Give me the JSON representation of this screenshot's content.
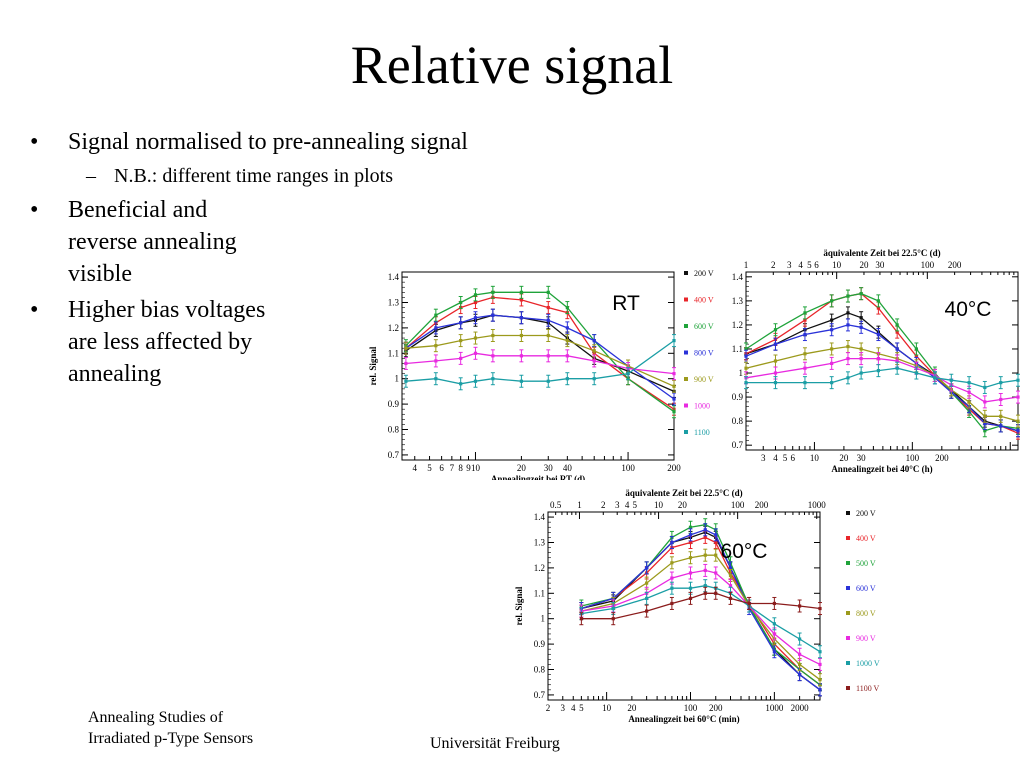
{
  "slide": {
    "title": "Relative signal",
    "bullets": [
      {
        "text": "Signal normalised to  pre-annealing signal",
        "sub": [
          "N.B.: different time ranges in plots"
        ]
      },
      {
        "text": "Beneficial and reverse annealing visible"
      },
      {
        "text": "Higher bias voltages are less affected by annealing"
      }
    ],
    "footer_left": "Annealing Studies of Irradiated p-Type Sensors",
    "footer_center": "Universität Freiburg",
    "bullet_symbol": "•",
    "dash_symbol": "–"
  },
  "chart_data": [
    {
      "type": "line",
      "label": "RT",
      "xscale": "log",
      "xlabel": "Annealingzeit bei RT (d)",
      "ylabel": "rel. Signal",
      "xlim": [
        3.3,
        200
      ],
      "ylim": [
        0.68,
        1.42
      ],
      "xtick_labels": [
        {
          "v": 4,
          "t": "4"
        },
        {
          "v": 5,
          "t": "5"
        },
        {
          "v": 6,
          "t": "6"
        },
        {
          "v": 7,
          "t": "7"
        },
        {
          "v": 8,
          "t": "8"
        },
        {
          "v": 9,
          "t": "9"
        },
        {
          "v": 10,
          "t": "10"
        },
        {
          "v": 20,
          "t": "20"
        },
        {
          "v": 30,
          "t": "30"
        },
        {
          "v": 40,
          "t": "40"
        },
        {
          "v": 100,
          "t": "100"
        },
        {
          "v": 200,
          "t": "200"
        }
      ],
      "yticks": [
        0.7,
        0.8,
        0.9,
        1.0,
        1.1,
        1.2,
        1.3,
        1.4
      ],
      "ytick_labels": [
        "0.7",
        "0.8",
        "0.9",
        "1",
        "1.1",
        "1.2",
        "1.3",
        "1.4"
      ],
      "legend": [
        "200 V",
        "400 V",
        "600 V",
        "800 V",
        "900 V",
        "1000",
        "1100"
      ],
      "x": [
        3.5,
        5.5,
        8,
        10,
        13,
        20,
        30,
        40,
        60,
        100,
        200
      ],
      "series": [
        {
          "name": "200 V",
          "color": "#111111",
          "values": [
            1.11,
            1.19,
            1.22,
            1.23,
            1.25,
            1.24,
            1.22,
            1.16,
            1.08,
            1.03,
            0.95
          ]
        },
        {
          "name": "400 V",
          "color": "#e8252a",
          "values": [
            1.12,
            1.22,
            1.28,
            1.3,
            1.32,
            1.31,
            1.28,
            1.26,
            1.1,
            1.0,
            0.88
          ]
        },
        {
          "name": "600 V",
          "color": "#1fa33a",
          "values": [
            1.13,
            1.25,
            1.3,
            1.33,
            1.34,
            1.34,
            1.34,
            1.28,
            1.15,
            1.0,
            0.87
          ]
        },
        {
          "name": "800 V",
          "color": "#2a32d8",
          "values": [
            1.12,
            1.2,
            1.22,
            1.24,
            1.25,
            1.24,
            1.23,
            1.2,
            1.15,
            1.05,
            0.92
          ]
        },
        {
          "name": "900 V",
          "color": "#9c9a1c",
          "values": [
            1.12,
            1.13,
            1.15,
            1.16,
            1.17,
            1.17,
            1.17,
            1.15,
            1.11,
            1.05,
            0.97
          ]
        },
        {
          "name": "1000",
          "color": "#e82ae0",
          "values": [
            1.06,
            1.07,
            1.08,
            1.1,
            1.09,
            1.09,
            1.09,
            1.09,
            1.07,
            1.04,
            1.02
          ]
        },
        {
          "name": "1100",
          "color": "#1b9ea5",
          "values": [
            0.99,
            1.0,
            0.98,
            0.99,
            1.0,
            0.99,
            0.99,
            1.0,
            1.0,
            1.02,
            1.15
          ]
        }
      ]
    },
    {
      "type": "line",
      "label": "40°C",
      "xscale": "log",
      "xlabel": "Annealingzeit bei 40°C (h)",
      "ylabel": "",
      "top_axis_label": "äquivalente Zeit bei 22.5°C (d)",
      "top_xlim": [
        1,
        1000
      ],
      "top_tick_labels": [
        {
          "v": 1,
          "t": "1"
        },
        {
          "v": 2,
          "t": "2"
        },
        {
          "v": 3,
          "t": "3"
        },
        {
          "v": 4,
          "t": "4"
        },
        {
          "v": 5,
          "t": "5"
        },
        {
          "v": 6,
          "t": "6"
        },
        {
          "v": 10,
          "t": "10"
        },
        {
          "v": 20,
          "t": "20"
        },
        {
          "v": 30,
          "t": "30"
        },
        {
          "v": 100,
          "t": "100"
        },
        {
          "v": 200,
          "t": "200"
        }
      ],
      "xlim": [
        2,
        1200
      ],
      "ylim": [
        0.68,
        1.42
      ],
      "xtick_labels": [
        {
          "v": 3,
          "t": "3"
        },
        {
          "v": 4,
          "t": "4"
        },
        {
          "v": 5,
          "t": "5"
        },
        {
          "v": 6,
          "t": "6"
        },
        {
          "v": 10,
          "t": "10"
        },
        {
          "v": 20,
          "t": "20"
        },
        {
          "v": 30,
          "t": "30"
        },
        {
          "v": 100,
          "t": "100"
        },
        {
          "v": 200,
          "t": "200"
        }
      ],
      "yticks": [
        0.7,
        0.8,
        0.9,
        1.0,
        1.1,
        1.2,
        1.3,
        1.4
      ],
      "ytick_labels": [
        "0.7",
        "0.8",
        "0.9",
        "1",
        "1.1",
        "1.2",
        "1.3",
        "1.4"
      ],
      "x": [
        2,
        4,
        8,
        15,
        22,
        30,
        45,
        70,
        110,
        170,
        250,
        380,
        550,
        800,
        1200
      ],
      "series": [
        {
          "name": "200 V",
          "color": "#111111",
          "values": [
            1.08,
            1.12,
            1.18,
            1.22,
            1.25,
            1.23,
            1.17,
            1.1,
            1.04,
            0.99,
            0.93,
            0.86,
            0.8,
            0.78,
            0.76
          ]
        },
        {
          "name": "400 V",
          "color": "#e8252a",
          "values": [
            1.08,
            1.14,
            1.22,
            1.3,
            1.32,
            1.33,
            1.27,
            1.17,
            1.07,
            0.99,
            0.92,
            0.85,
            0.79,
            0.78,
            0.75
          ]
        },
        {
          "name": "600 V",
          "color": "#1fa33a",
          "values": [
            1.1,
            1.18,
            1.25,
            1.3,
            1.32,
            1.33,
            1.3,
            1.2,
            1.1,
            1.0,
            0.92,
            0.84,
            0.76,
            0.78,
            0.77
          ]
        },
        {
          "name": "800 V",
          "color": "#2a32d8",
          "values": [
            1.07,
            1.12,
            1.16,
            1.18,
            1.2,
            1.19,
            1.16,
            1.1,
            1.04,
            0.98,
            0.92,
            0.86,
            0.79,
            0.78,
            0.76
          ]
        },
        {
          "name": "900 V",
          "color": "#9c9a1c",
          "values": [
            1.02,
            1.05,
            1.08,
            1.1,
            1.11,
            1.1,
            1.08,
            1.06,
            1.03,
            0.99,
            0.93,
            0.88,
            0.82,
            0.82,
            0.8
          ]
        },
        {
          "name": "1000",
          "color": "#e82ae0",
          "values": [
            0.98,
            1.0,
            1.02,
            1.04,
            1.06,
            1.06,
            1.06,
            1.05,
            1.02,
            0.99,
            0.95,
            0.92,
            0.88,
            0.89,
            0.9
          ]
        },
        {
          "name": "1100",
          "color": "#1b9ea5",
          "values": [
            0.96,
            0.96,
            0.96,
            0.96,
            0.98,
            1.0,
            1.01,
            1.02,
            1.0,
            0.98,
            0.97,
            0.96,
            0.94,
            0.96,
            0.97
          ]
        }
      ]
    },
    {
      "type": "line",
      "label": "60°C",
      "xscale": "log",
      "xlabel": "Annealingzeit bei 60°C (min)",
      "ylabel": "rel. Signal",
      "top_axis_label": "äquivalente Zeit bei 22.5°C (d)",
      "top_xlim": [
        0.4,
        1100
      ],
      "top_tick_labels": [
        {
          "v": 0.5,
          "t": "0.5"
        },
        {
          "v": 1,
          "t": "1"
        },
        {
          "v": 2,
          "t": "2"
        },
        {
          "v": 3,
          "t": "3"
        },
        {
          "v": 4,
          "t": "4"
        },
        {
          "v": 5,
          "t": "5"
        },
        {
          "v": 10,
          "t": "10"
        },
        {
          "v": 20,
          "t": "20"
        },
        {
          "v": 100,
          "t": "100"
        },
        {
          "v": 200,
          "t": "200"
        },
        {
          "v": 1000,
          "t": "1000"
        }
      ],
      "xlim": [
        2,
        3500
      ],
      "ylim": [
        0.68,
        1.42
      ],
      "xtick_labels": [
        {
          "v": 2,
          "t": "2"
        },
        {
          "v": 3,
          "t": "3"
        },
        {
          "v": 4,
          "t": "4"
        },
        {
          "v": 5,
          "t": "5"
        },
        {
          "v": 10,
          "t": "10"
        },
        {
          "v": 20,
          "t": "20"
        },
        {
          "v": 100,
          "t": "100"
        },
        {
          "v": 200,
          "t": "200"
        },
        {
          "v": 1000,
          "t": "1000"
        },
        {
          "v": 2000,
          "t": "2000"
        }
      ],
      "yticks": [
        0.7,
        0.8,
        0.9,
        1.0,
        1.1,
        1.2,
        1.3,
        1.4
      ],
      "ytick_labels": [
        "0.7",
        "0.8",
        "0.9",
        "1",
        "1.1",
        "1.2",
        "1.3",
        "1.4"
      ],
      "legend": [
        "200 V",
        "400 V",
        "500 V",
        "600 V",
        "800 V",
        "900 V",
        "1000 V",
        "1100 V"
      ],
      "x": [
        5,
        12,
        30,
        60,
        100,
        150,
        200,
        300,
        500,
        1000,
        2000,
        3500
      ],
      "series": [
        {
          "name": "200 V",
          "color": "#111111",
          "values": [
            1.04,
            1.07,
            1.2,
            1.3,
            1.32,
            1.34,
            1.32,
            1.2,
            1.05,
            0.88,
            0.78,
            0.72
          ]
        },
        {
          "name": "400 V",
          "color": "#e8252a",
          "values": [
            1.04,
            1.08,
            1.18,
            1.28,
            1.3,
            1.32,
            1.3,
            1.18,
            1.06,
            0.9,
            0.8,
            0.74
          ]
        },
        {
          "name": "500 V",
          "color": "#1fa33a",
          "values": [
            1.05,
            1.08,
            1.2,
            1.32,
            1.36,
            1.37,
            1.35,
            1.22,
            1.05,
            0.88,
            0.8,
            0.74
          ]
        },
        {
          "name": "600 V",
          "color": "#2a32d8",
          "values": [
            1.04,
            1.08,
            1.2,
            1.3,
            1.33,
            1.35,
            1.33,
            1.2,
            1.04,
            0.87,
            0.78,
            0.72
          ]
        },
        {
          "name": "800 V",
          "color": "#9c9a1c",
          "values": [
            1.03,
            1.06,
            1.14,
            1.22,
            1.24,
            1.25,
            1.25,
            1.17,
            1.05,
            0.92,
            0.82,
            0.76
          ]
        },
        {
          "name": "900 V",
          "color": "#e82ae0",
          "values": [
            1.03,
            1.05,
            1.1,
            1.16,
            1.18,
            1.19,
            1.18,
            1.13,
            1.05,
            0.94,
            0.86,
            0.82
          ]
        },
        {
          "name": "1000 V",
          "color": "#1b9ea5",
          "values": [
            1.02,
            1.04,
            1.08,
            1.12,
            1.12,
            1.13,
            1.12,
            1.1,
            1.05,
            0.98,
            0.92,
            0.87
          ]
        },
        {
          "name": "1100 V",
          "color": "#8b1c1c",
          "values": [
            1.0,
            1.0,
            1.03,
            1.06,
            1.08,
            1.1,
            1.1,
            1.08,
            1.06,
            1.06,
            1.05,
            1.04
          ]
        }
      ]
    }
  ]
}
